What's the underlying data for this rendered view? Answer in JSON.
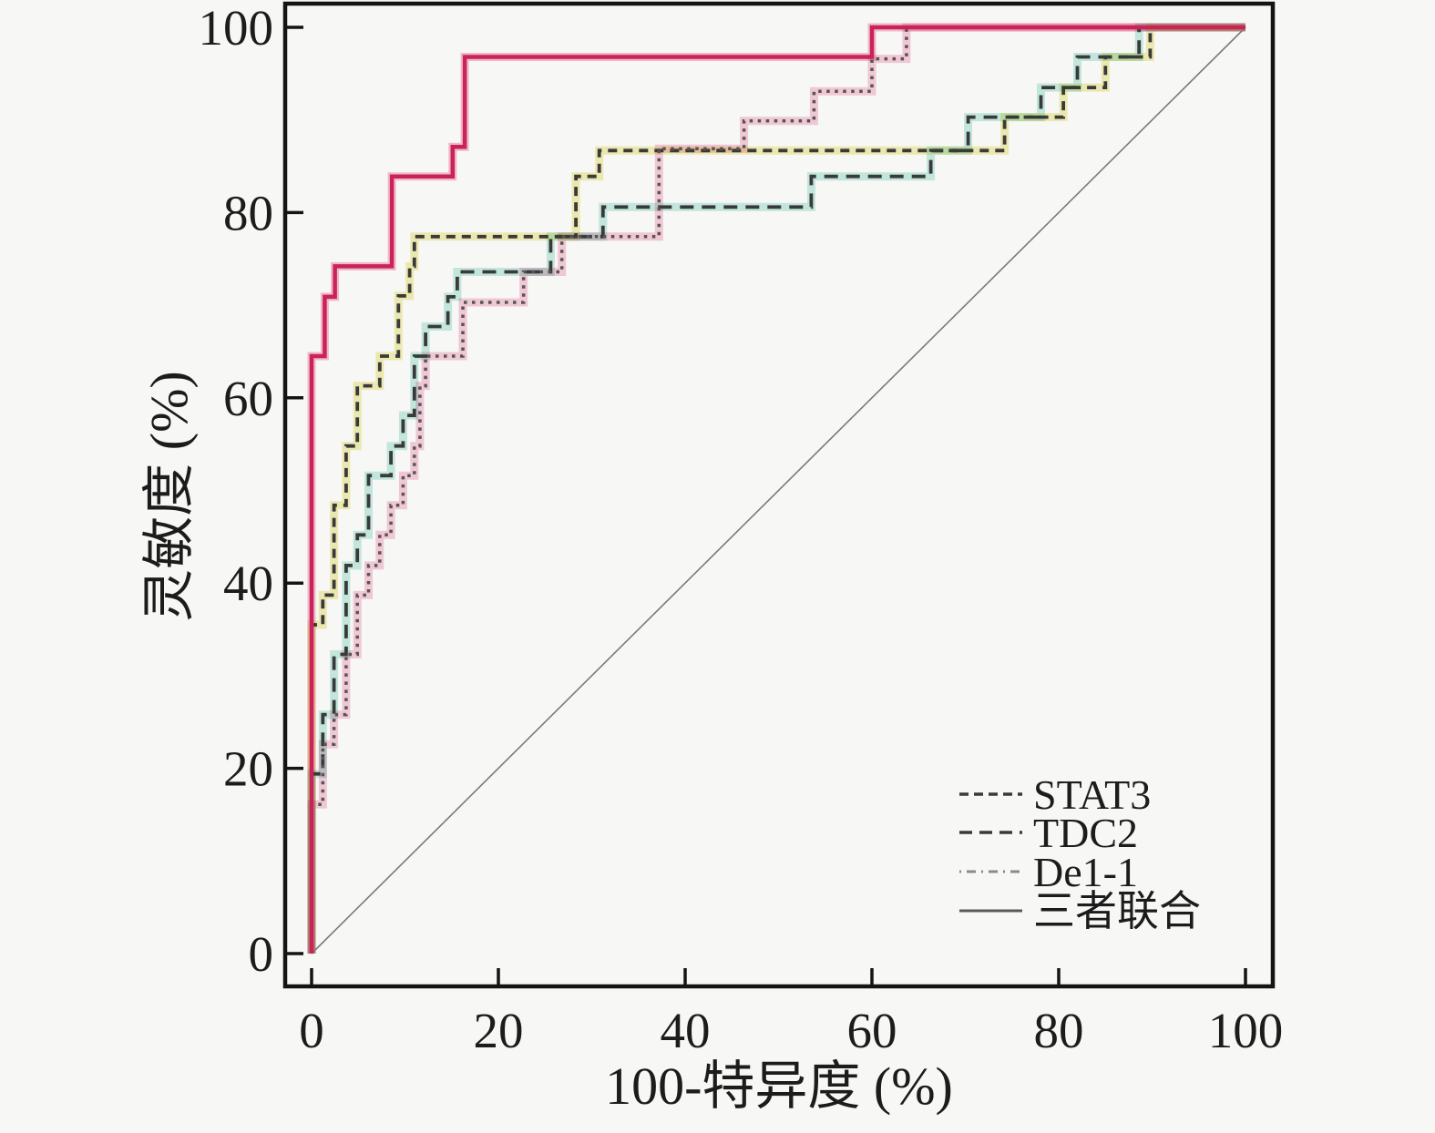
{
  "figure": {
    "background": "#f7f7f5",
    "axis_color": "#141414",
    "text_color": "#1c1c1c",
    "x_axis": {
      "title": "100-特异度 (%)",
      "tick_labels": [
        "0",
        "20",
        "40",
        "60",
        "80",
        "100"
      ],
      "tick_values": [
        0,
        20,
        40,
        60,
        80,
        100
      ]
    },
    "y_axis": {
      "title": "灵敏度 (%)",
      "tick_labels": [
        "0",
        "20",
        "40",
        "60",
        "80",
        "100"
      ],
      "tick_values": [
        0,
        20,
        40,
        60,
        80,
        100
      ]
    },
    "legend": {
      "items": [
        {
          "label": "STAT3",
          "swatch": "dashed-short",
          "color": "#3a3a3a"
        },
        {
          "label": "TDC2",
          "swatch": "dashed-long",
          "color": "#3a3a3a"
        },
        {
          "label": "De1-1",
          "swatch": "dash-dot",
          "color": "#8a8a8a"
        },
        {
          "label": "三者联合",
          "swatch": "solid",
          "color": "#5a5a5a"
        }
      ]
    }
  },
  "chart_data": {
    "type": "line",
    "subtype": "roc_step_curves",
    "title": "",
    "xlabel": "100-特异度 (%)",
    "ylabel": "灵敏度 (%)",
    "xlim": [
      0,
      100
    ],
    "ylim": [
      0,
      100
    ],
    "grid": false,
    "legend_position": "lower-right",
    "accent_color": "#c9235a",
    "reference_line": {
      "name": "chance-diagonal",
      "color": "#7a7a7a",
      "width": 1.6,
      "points": [
        [
          0,
          0
        ],
        [
          100,
          100
        ]
      ]
    },
    "series": [
      {
        "name": "STAT3",
        "line": "dashed",
        "dash": "10 7",
        "color": "#3a3a3a",
        "width": 3.8,
        "glow_color": "#f2efae",
        "points": [
          [
            0,
            0
          ],
          [
            0,
            35.5
          ],
          [
            1.2,
            35.5
          ],
          [
            1.2,
            38.7
          ],
          [
            2.4,
            38.7
          ],
          [
            2.4,
            48.4
          ],
          [
            3.7,
            48.4
          ],
          [
            3.7,
            54.8
          ],
          [
            4.9,
            54.8
          ],
          [
            4.9,
            61.3
          ],
          [
            7.3,
            61.3
          ],
          [
            7.3,
            64.5
          ],
          [
            9.3,
            64.5
          ],
          [
            9.3,
            71
          ],
          [
            10.5,
            71
          ],
          [
            10.5,
            74.2
          ],
          [
            11,
            74.2
          ],
          [
            11,
            77.4
          ],
          [
            28.3,
            77.4
          ],
          [
            28.3,
            83.9
          ],
          [
            30.8,
            83.9
          ],
          [
            30.8,
            86.7
          ],
          [
            74.2,
            86.7
          ],
          [
            74.2,
            90.3
          ],
          [
            80.5,
            90.3
          ],
          [
            80.5,
            93.5
          ],
          [
            85,
            93.5
          ],
          [
            85,
            96.8
          ],
          [
            89.8,
            96.8
          ],
          [
            89.8,
            100
          ],
          [
            100,
            100
          ]
        ]
      },
      {
        "name": "TDC2",
        "line": "dashed",
        "dash": "15 9",
        "color": "#3a3a3a",
        "width": 3.8,
        "glow_color": "#c3ece2",
        "points": [
          [
            0,
            0
          ],
          [
            0,
            19.4
          ],
          [
            1.2,
            19.4
          ],
          [
            1.2,
            25.8
          ],
          [
            2.4,
            25.8
          ],
          [
            2.4,
            32.3
          ],
          [
            3.7,
            32.3
          ],
          [
            3.7,
            41.9
          ],
          [
            4.9,
            41.9
          ],
          [
            4.9,
            45.2
          ],
          [
            6.1,
            45.2
          ],
          [
            6.1,
            51.6
          ],
          [
            8.5,
            51.6
          ],
          [
            8.5,
            54.8
          ],
          [
            9.8,
            54.8
          ],
          [
            9.8,
            58.1
          ],
          [
            11,
            58.1
          ],
          [
            11,
            64.5
          ],
          [
            12.2,
            64.5
          ],
          [
            12.2,
            67.7
          ],
          [
            14.6,
            67.7
          ],
          [
            14.6,
            70.9
          ],
          [
            15.6,
            70.9
          ],
          [
            15.6,
            73.6
          ],
          [
            25.6,
            73.6
          ],
          [
            25.6,
            77.4
          ],
          [
            31.2,
            77.4
          ],
          [
            31.2,
            80.6
          ],
          [
            53.5,
            80.6
          ],
          [
            53.5,
            83.9
          ],
          [
            66.3,
            83.9
          ],
          [
            66.3,
            86.7
          ],
          [
            70.3,
            86.7
          ],
          [
            70.3,
            90.3
          ],
          [
            78.1,
            90.3
          ],
          [
            78.1,
            93.5
          ],
          [
            82,
            93.5
          ],
          [
            82,
            96.8
          ],
          [
            88.6,
            96.8
          ],
          [
            88.6,
            100
          ],
          [
            100,
            100
          ]
        ]
      },
      {
        "name": "De1-1",
        "line": "dotted",
        "dash": "3.5 5.5",
        "color": "#555555",
        "width": 3.5,
        "glow_color": "#f8c9da",
        "points": [
          [
            0,
            0
          ],
          [
            0,
            16.1
          ],
          [
            1.2,
            16.1
          ],
          [
            1.2,
            22.6
          ],
          [
            2.4,
            22.6
          ],
          [
            2.4,
            25.8
          ],
          [
            3.7,
            25.8
          ],
          [
            3.7,
            32.3
          ],
          [
            4.9,
            32.3
          ],
          [
            4.9,
            38.7
          ],
          [
            6.1,
            38.7
          ],
          [
            6.1,
            41.9
          ],
          [
            7.3,
            41.9
          ],
          [
            7.3,
            45.2
          ],
          [
            8.5,
            45.2
          ],
          [
            8.5,
            48.4
          ],
          [
            9.8,
            48.4
          ],
          [
            9.8,
            51.6
          ],
          [
            11,
            51.6
          ],
          [
            11,
            54.8
          ],
          [
            11.6,
            54.8
          ],
          [
            11.6,
            61.3
          ],
          [
            12.2,
            61.3
          ],
          [
            12.2,
            64.5
          ],
          [
            16.2,
            64.5
          ],
          [
            16.2,
            70.3
          ],
          [
            22.7,
            70.3
          ],
          [
            22.7,
            73.6
          ],
          [
            26.8,
            73.6
          ],
          [
            26.8,
            77.4
          ],
          [
            37.2,
            77.4
          ],
          [
            37.2,
            86.9
          ],
          [
            46.3,
            86.9
          ],
          [
            46.3,
            89.9
          ],
          [
            53.8,
            89.9
          ],
          [
            53.8,
            93.1
          ],
          [
            60,
            93.1
          ],
          [
            60,
            96.6
          ],
          [
            63.7,
            96.6
          ],
          [
            63.7,
            100
          ],
          [
            100,
            100
          ]
        ]
      },
      {
        "name": "三者联合",
        "line": "solid",
        "dash": "",
        "color": "#c9235a",
        "width": 4.5,
        "glow_color": "#f6b7cb",
        "points": [
          [
            0,
            0
          ],
          [
            0,
            64.5
          ],
          [
            1.4,
            64.5
          ],
          [
            1.4,
            70.9
          ],
          [
            2.5,
            70.9
          ],
          [
            2.5,
            74.2
          ],
          [
            8.6,
            74.2
          ],
          [
            8.6,
            83.9
          ],
          [
            15.1,
            83.9
          ],
          [
            15.1,
            87.1
          ],
          [
            16.4,
            87.1
          ],
          [
            16.4,
            96.8
          ],
          [
            60,
            96.8
          ],
          [
            60,
            100
          ],
          [
            100,
            100
          ]
        ]
      }
    ]
  }
}
